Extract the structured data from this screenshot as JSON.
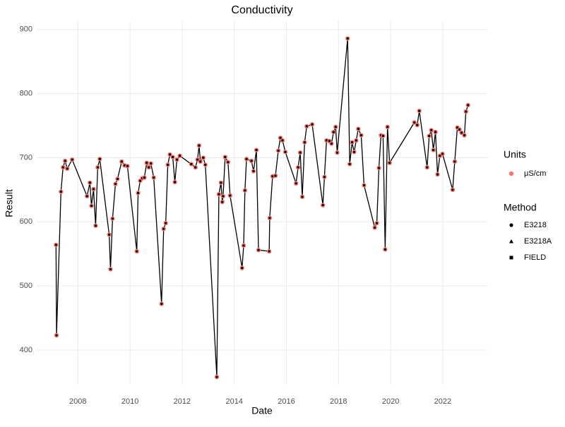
{
  "chart_data": {
    "type": "line",
    "title": "Conductivity",
    "x_label": "Date",
    "y_label": "Result",
    "x": [
      2007.16,
      2007.18,
      2007.35,
      2007.43,
      2007.51,
      2007.59,
      2007.78,
      2008.35,
      2008.46,
      2008.52,
      2008.6,
      2008.68,
      2008.76,
      2008.84,
      2009.2,
      2009.25,
      2009.33,
      2009.44,
      2009.52,
      2009.68,
      2009.79,
      2009.9,
      2010.26,
      2010.31,
      2010.39,
      2010.47,
      2010.55,
      2010.64,
      2010.72,
      2010.8,
      2010.91,
      2011.21,
      2011.29,
      2011.37,
      2011.45,
      2011.53,
      2011.64,
      2011.72,
      2011.8,
      2011.91,
      2012.35,
      2012.51,
      2012.59,
      2012.65,
      2012.7,
      2012.81,
      2012.89,
      2013.33,
      2013.41,
      2013.49,
      2013.54,
      2013.57,
      2013.65,
      2013.76,
      2013.84,
      2014.3,
      2014.36,
      2014.41,
      2014.47,
      2014.66,
      2014.74,
      2014.85,
      2014.93,
      2015.34,
      2015.36,
      2015.47,
      2015.58,
      2015.69,
      2015.77,
      2015.85,
      2015.96,
      2016.37,
      2016.45,
      2016.53,
      2016.61,
      2016.7,
      2016.78,
      2016.99,
      2017.4,
      2017.46,
      2017.54,
      2017.65,
      2017.73,
      2017.81,
      2017.89,
      2017.95,
      2018.35,
      2018.43,
      2018.52,
      2018.6,
      2018.68,
      2018.76,
      2018.87,
      2018.98,
      2019.39,
      2019.47,
      2019.55,
      2019.63,
      2019.71,
      2019.79,
      2019.88,
      2019.96,
      2020.91,
      2021.02,
      2021.1,
      2021.4,
      2021.48,
      2021.56,
      2021.64,
      2021.72,
      2021.8,
      2021.89,
      2021.99,
      2022.38,
      2022.46,
      2022.56,
      2022.64,
      2022.72,
      2022.83,
      2022.89,
      2022.97
    ],
    "series": [
      {
        "name": "μS/cm",
        "color": "#F8766D",
        "values": [
          564,
          423,
          647,
          685,
          695,
          683,
          697,
          640,
          661,
          625,
          651,
          594,
          685,
          698,
          580,
          526,
          605,
          659,
          667,
          694,
          688,
          687,
          554,
          645,
          664,
          668,
          669,
          692,
          685,
          691,
          669,
          472,
          589,
          598,
          689,
          705,
          701,
          662,
          697,
          703,
          690,
          685,
          697,
          719,
          694,
          700,
          689,
          358,
          643,
          661,
          631,
          640,
          701,
          693,
          641,
          528,
          563,
          649,
          698,
          695,
          679,
          712,
          556,
          554,
          606,
          671,
          672,
          711,
          731,
          727,
          709,
          660,
          685,
          708,
          639,
          724,
          749,
          752,
          626,
          670,
          727,
          726,
          722,
          740,
          748,
          708,
          886,
          690,
          724,
          709,
          727,
          745,
          735,
          657,
          591,
          598,
          684,
          735,
          734,
          557,
          748,
          692,
          755,
          751,
          773,
          685,
          734,
          743,
          712,
          740,
          674,
          703,
          706,
          650,
          694,
          747,
          744,
          739,
          735,
          772,
          782
        ]
      }
    ],
    "line_color": "#000000",
    "marker": "square",
    "xlim": [
      2006.42,
      2023.71
    ],
    "xticks": [
      2008,
      2010,
      2012,
      2014,
      2016,
      2018,
      2020,
      2022
    ],
    "ylim": [
      346,
      913
    ],
    "yticks": [
      400,
      500,
      600,
      700,
      800,
      900
    ],
    "grid": true,
    "legend": {
      "units_title": "Units",
      "method_title": "Method",
      "methods": [
        "E3218",
        "E3218A",
        "FIELD"
      ]
    }
  }
}
